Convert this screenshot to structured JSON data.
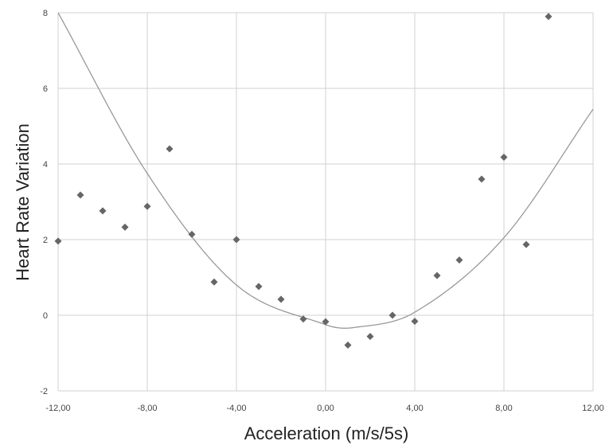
{
  "chart_data": {
    "type": "scatter",
    "title": "",
    "xlabel": "Acceleration (m/s/5s)",
    "ylabel": "Heart Rate Variation",
    "xlim": [
      -12,
      12
    ],
    "ylim": [
      -2,
      8
    ],
    "x_ticks": [
      -12,
      -8,
      -4,
      0,
      4,
      8,
      12
    ],
    "x_tick_labels": [
      "-12,00",
      "-8,00",
      "-4,00",
      "0,00",
      "4,00",
      "8,00",
      "12,00"
    ],
    "y_ticks": [
      -2,
      0,
      2,
      4,
      6,
      8
    ],
    "y_tick_labels": [
      "-2",
      "0",
      "2",
      "4",
      "6",
      "8"
    ],
    "grid": true,
    "legend": "none",
    "series": [
      {
        "marker": "diamond",
        "color": "#666666",
        "points": [
          [
            -12,
            1.96
          ],
          [
            -11,
            3.18
          ],
          [
            -10,
            2.76
          ],
          [
            -9,
            2.33
          ],
          [
            -8,
            2.88
          ],
          [
            -7,
            4.4
          ],
          [
            -6,
            2.14
          ],
          [
            -5,
            0.88
          ],
          [
            -4,
            2.0
          ],
          [
            -3,
            0.76
          ],
          [
            -2,
            0.42
          ],
          [
            -1,
            -0.1
          ],
          [
            0,
            -0.17
          ],
          [
            1,
            -0.79
          ],
          [
            2,
            -0.56
          ],
          [
            3,
            0.0
          ],
          [
            4,
            -0.16
          ],
          [
            5,
            1.05
          ],
          [
            6,
            1.46
          ],
          [
            7,
            3.6
          ],
          [
            8,
            4.18
          ],
          [
            9,
            1.87
          ],
          [
            10,
            7.9
          ]
        ]
      }
    ],
    "trendline": {
      "type": "polynomial",
      "color": "#999999",
      "points": [
        [
          -12,
          8.0
        ],
        [
          -8,
          3.75
        ],
        [
          -4,
          0.8
        ],
        [
          0,
          -0.25
        ],
        [
          1.2,
          -0.33
        ],
        [
          4,
          0.08
        ],
        [
          8,
          2.05
        ],
        [
          12,
          5.45
        ]
      ]
    }
  }
}
